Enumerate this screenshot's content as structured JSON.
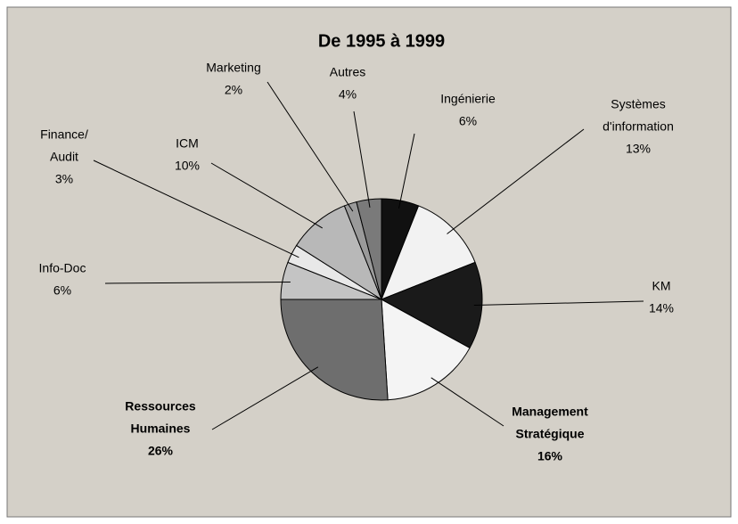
{
  "chart_data": {
    "type": "pie",
    "title": "De 1995 à 1999",
    "labels": [
      [
        "Ingénierie"
      ],
      [
        "Systèmes",
        "d'information"
      ],
      [
        "KM"
      ],
      [
        "Management",
        "Stratégique"
      ],
      [
        "Ressources",
        "Humaines"
      ],
      [
        "Info-Doc"
      ],
      [
        "Finance/",
        "Audit"
      ],
      [
        "ICM"
      ],
      [
        "Marketing"
      ],
      [
        "Autres"
      ]
    ],
    "values": [
      6,
      13,
      14,
      16,
      26,
      6,
      3,
      10,
      2,
      4
    ],
    "value_labels": [
      "6%",
      "13%",
      "14%",
      "16%",
      "26%",
      "6%",
      "3%",
      "10%",
      "2%",
      "4%"
    ],
    "colors": [
      "#111111",
      "#f2f2f2",
      "#1a1a1a",
      "#f4f4f4",
      "#6e6e6e",
      "#c4c4c4",
      "#e8e8e8",
      "#b8b8b8",
      "#9a9a9a",
      "#7a7a7a"
    ],
    "label_colors": [
      "#000000",
      "#000000",
      "#000000",
      "#e00000",
      "#000000",
      "#000000",
      "#000000",
      "#000000",
      "#000000",
      "#000000"
    ],
    "label_bold": [
      false,
      false,
      false,
      true,
      true,
      false,
      false,
      false,
      false,
      false
    ]
  }
}
